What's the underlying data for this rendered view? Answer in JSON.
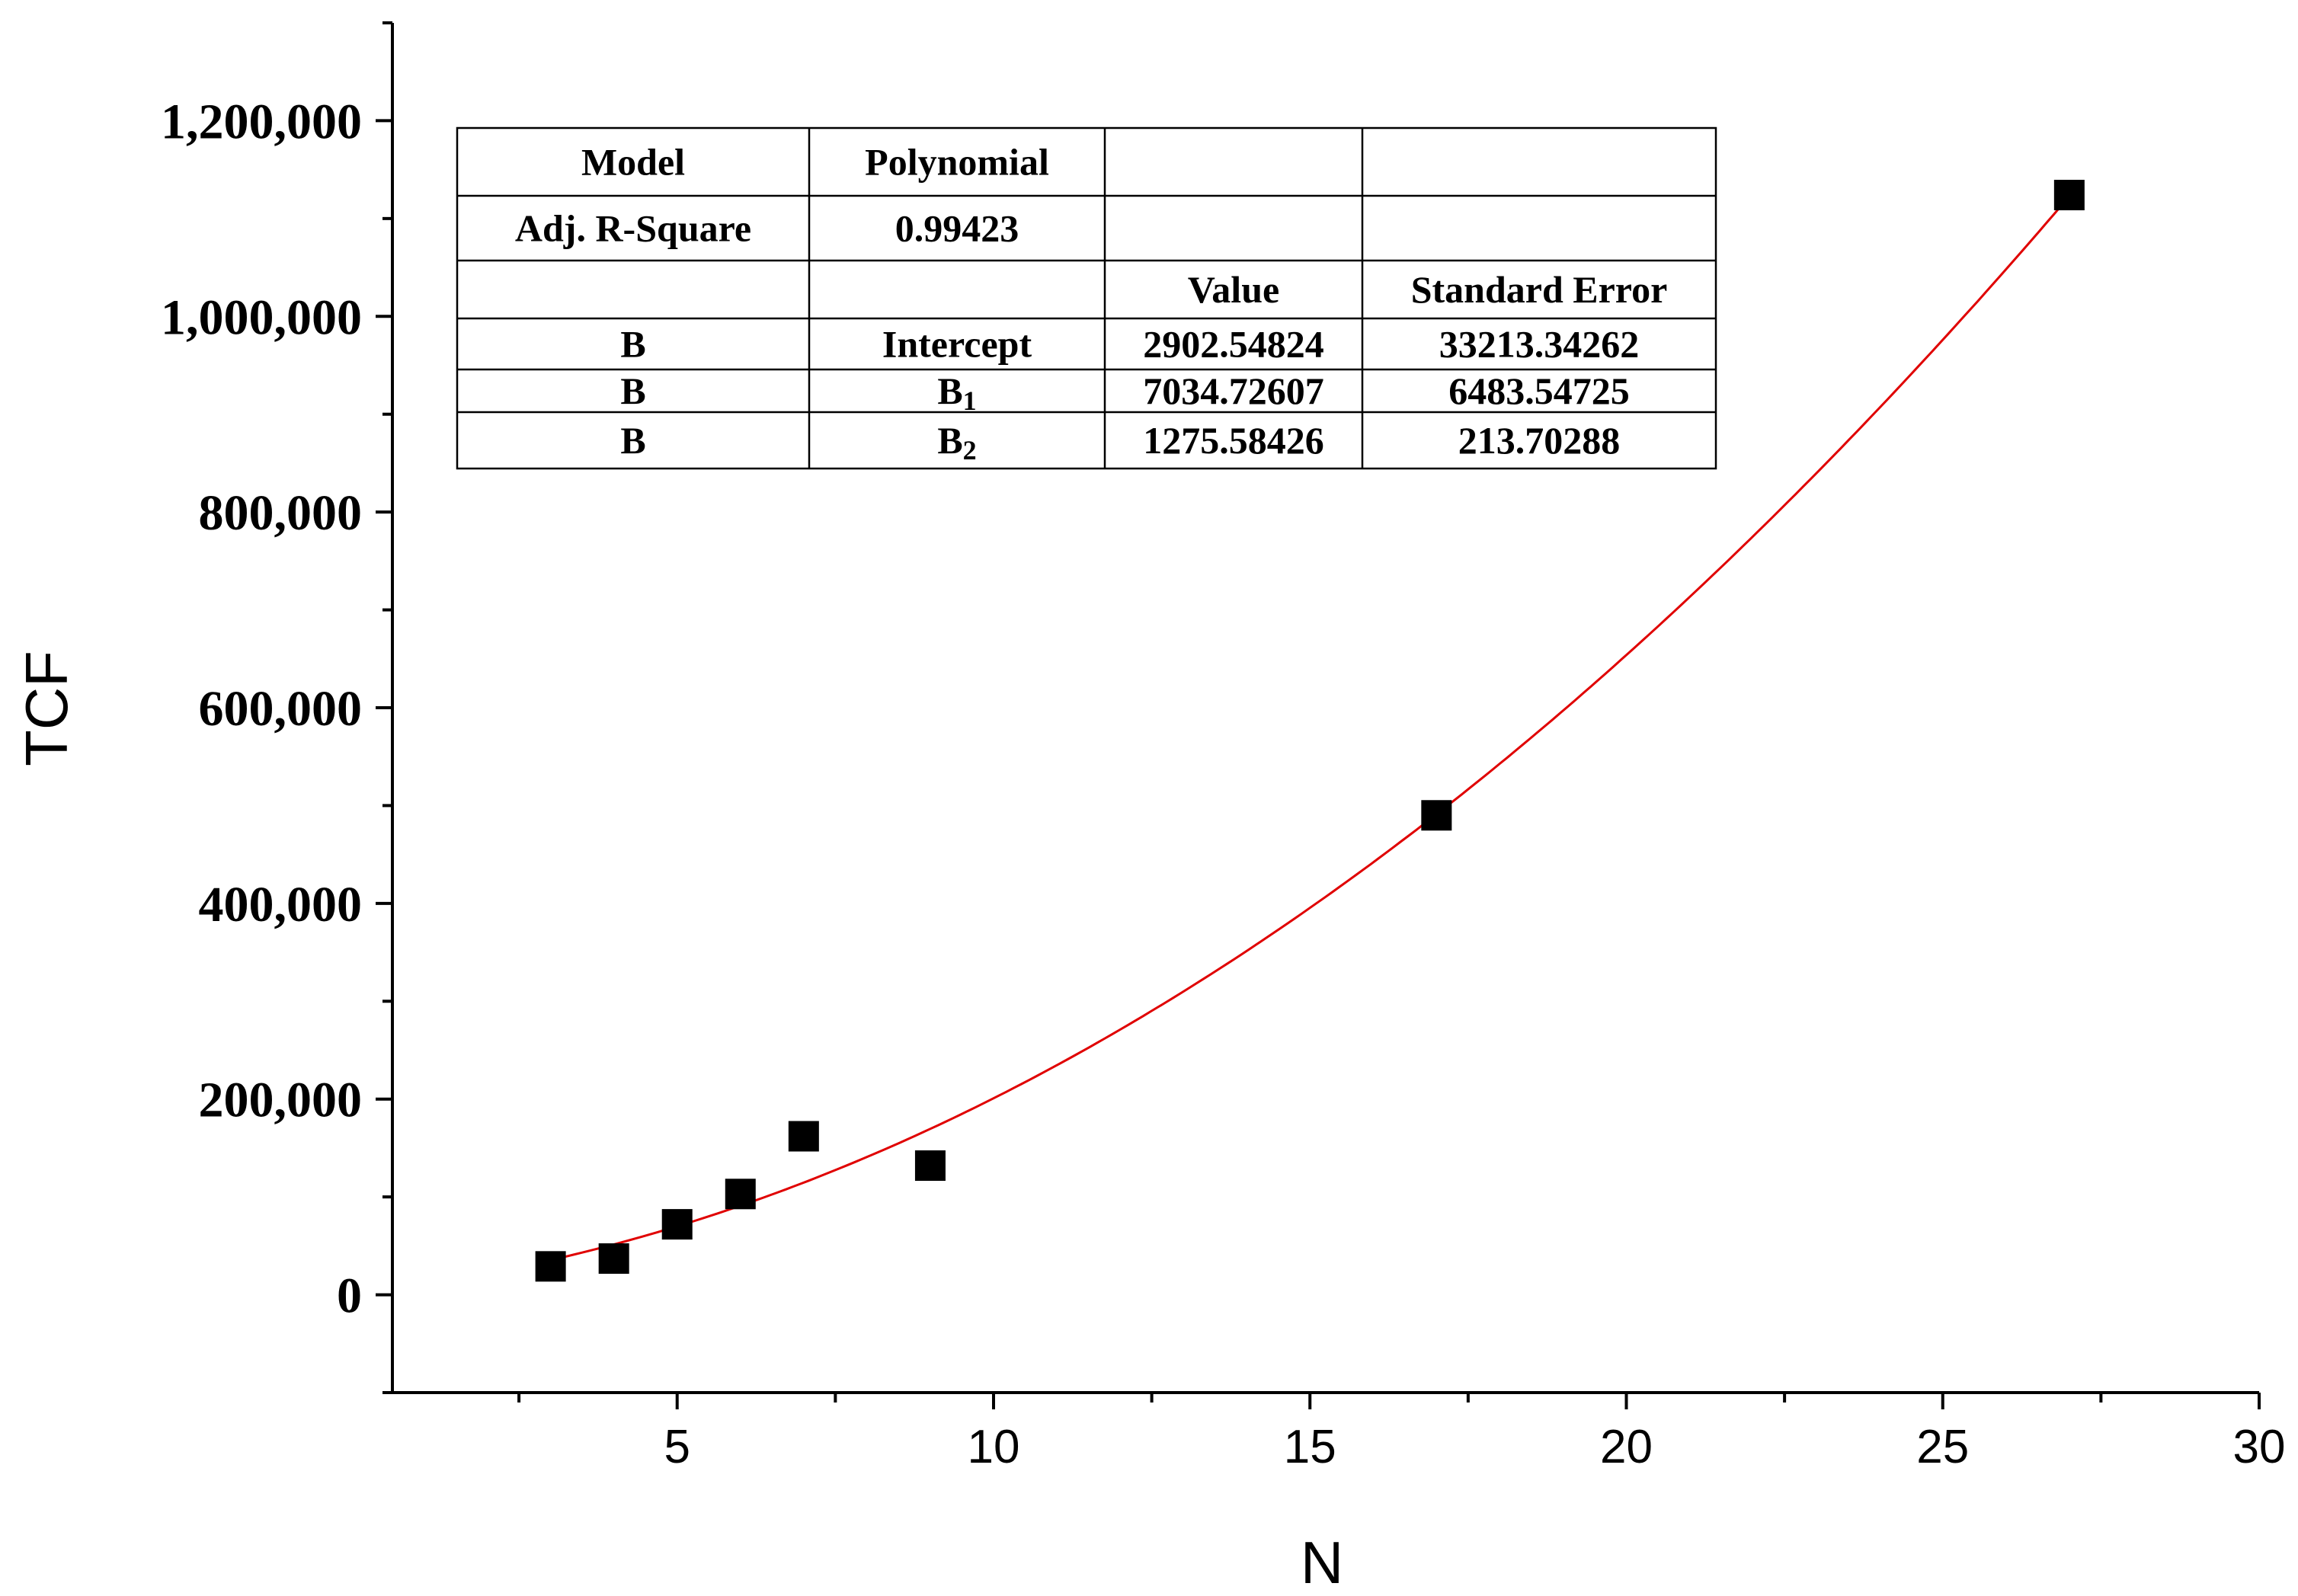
{
  "chart_data": {
    "type": "scatter",
    "xlabel": "N",
    "ylabel": "TCF",
    "xlim": [
      0.5,
      30
    ],
    "ylim": [
      -100000,
      1300000
    ],
    "x_ticks": [
      5,
      10,
      15,
      20,
      25,
      30
    ],
    "y_ticks": [
      0,
      200000,
      400000,
      600000,
      800000,
      1000000,
      1200000
    ],
    "y_tick_labels": [
      "0",
      "200,000",
      "400,000",
      "600,000",
      "800,000",
      "1,000,000",
      "1,200,000"
    ],
    "grid": false,
    "series": [
      {
        "marker": "square",
        "color": "#000000",
        "points": [
          {
            "x": 3,
            "y": 29000
          },
          {
            "x": 4,
            "y": 37000
          },
          {
            "x": 5,
            "y": 72000
          },
          {
            "x": 6,
            "y": 103000
          },
          {
            "x": 7,
            "y": 162000
          },
          {
            "x": 9,
            "y": 132000
          },
          {
            "x": 17,
            "y": 490000
          },
          {
            "x": 27,
            "y": 1124000
          }
        ]
      }
    ],
    "fit": {
      "type": "polynomial",
      "color": "#e00000",
      "x_range": [
        3,
        27
      ],
      "coefficients": [
        2902.54824,
        7034.72607,
        1275.58426
      ]
    },
    "table": {
      "rows": [
        [
          "Model",
          "Polynomial",
          "",
          ""
        ],
        [
          "Adj. R-Square",
          "0.99423",
          "",
          ""
        ],
        [
          "",
          "",
          "Value",
          "Standard Error"
        ],
        [
          "B",
          "Intercept",
          "2902.54824",
          "33213.34262"
        ],
        [
          "B",
          "B1",
          "7034.72607",
          "6483.54725"
        ],
        [
          "B",
          "B2",
          "1275.58426",
          "213.70288"
        ]
      ]
    }
  }
}
